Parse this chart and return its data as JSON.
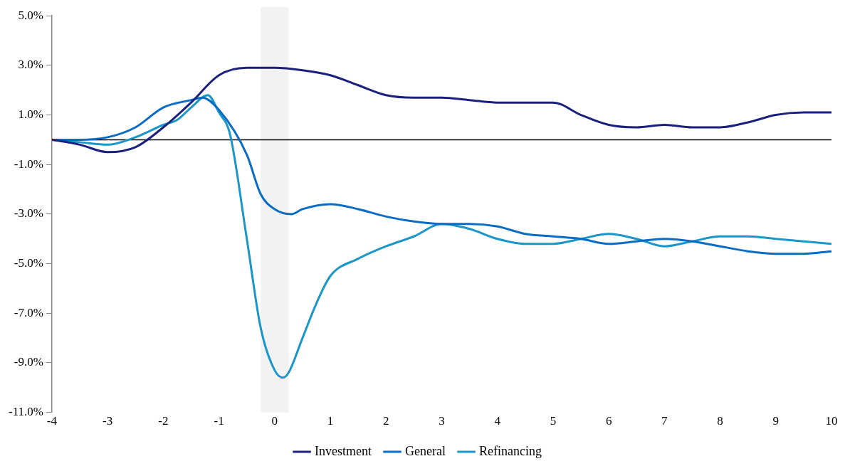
{
  "chart_data": {
    "type": "line",
    "legend": "bottom",
    "grid": false,
    "marker": "none",
    "line_style": "solid",
    "xlim": [
      -4,
      10
    ],
    "xticks": [
      -4,
      -3,
      -2,
      -1,
      0,
      1,
      2,
      3,
      4,
      5,
      6,
      7,
      8,
      9,
      10
    ],
    "ylim": [
      -11,
      5
    ],
    "yticks": [
      {
        "value": -11,
        "label": "-11.0%"
      },
      {
        "value": -9,
        "label": "-9.0%"
      },
      {
        "value": -7,
        "label": "-7.0%"
      },
      {
        "value": -5,
        "label": "-5.0%"
      },
      {
        "value": -3,
        "label": "-3.0%"
      },
      {
        "value": -1,
        "label": "-1.0%"
      },
      {
        "value": 1,
        "label": "1.0%"
      },
      {
        "value": 3,
        "label": "3.0%"
      },
      {
        "value": 5,
        "label": "5.0%"
      }
    ],
    "ref_lines": [
      {
        "axis": "y",
        "value": 0,
        "color": "#000000"
      }
    ],
    "bands": [
      {
        "axis": "x",
        "from": -0.25,
        "to": 0.25,
        "color": "#f2f2f2"
      }
    ],
    "series": [
      {
        "name": "Investment",
        "color": "#1b1f7e",
        "x": [
          -4,
          -3.5,
          -3,
          -2.5,
          -2,
          -1.5,
          -1,
          -0.5,
          0,
          0.5,
          1,
          1.5,
          2,
          2.5,
          3,
          3.5,
          4,
          4.5,
          5,
          5.5,
          6,
          6.5,
          7,
          7.5,
          8,
          8.5,
          9,
          9.5,
          10
        ],
        "values": [
          0,
          -0.2,
          -0.5,
          -0.3,
          0.5,
          1.5,
          2.6,
          2.9,
          2.9,
          2.8,
          2.6,
          2.2,
          1.8,
          1.7,
          1.7,
          1.6,
          1.5,
          1.5,
          1.5,
          1,
          0.6,
          0.5,
          0.6,
          0.5,
          0.5,
          0.7,
          1,
          1.1,
          1.1
        ]
      },
      {
        "name": "General",
        "color": "#0a6cc4",
        "x": [
          -4,
          -3.5,
          -3,
          -2.5,
          -2,
          -1.5,
          -1.3,
          -1,
          -0.5,
          -0.25,
          0,
          0.3,
          0.5,
          1,
          1.5,
          2,
          2.5,
          3,
          3.5,
          4,
          4.5,
          5,
          5.5,
          6,
          6.5,
          7,
          7.5,
          8,
          8.5,
          9,
          9.5,
          10
        ],
        "values": [
          0,
          0,
          0.1,
          0.5,
          1.3,
          1.6,
          1.7,
          1.2,
          -0.6,
          -2.2,
          -2.8,
          -3,
          -2.8,
          -2.6,
          -2.8,
          -3.1,
          -3.3,
          -3.4,
          -3.4,
          -3.5,
          -3.8,
          -3.9,
          -4,
          -4.2,
          -4.1,
          -4,
          -4.1,
          -4.3,
          -4.5,
          -4.6,
          -4.6,
          -4.5
        ]
      },
      {
        "name": "Refinancing",
        "color": "#1a96c9",
        "x": [
          -4,
          -3.5,
          -3,
          -2.5,
          -2,
          -1.75,
          -1.5,
          -1.2,
          -1,
          -0.8,
          -0.5,
          -0.25,
          0,
          0.15,
          0.25,
          0.5,
          0.75,
          1,
          1.5,
          2,
          2.5,
          3,
          3.5,
          4,
          4.5,
          5,
          5.5,
          6,
          6.5,
          7,
          7.5,
          8,
          8.5,
          9,
          9.5,
          10
        ],
        "values": [
          0,
          -0.1,
          -0.2,
          0.1,
          0.6,
          0.8,
          1.3,
          1.8,
          1.1,
          0.2,
          -4,
          -7.6,
          -9.3,
          -9.6,
          -9.4,
          -8,
          -6.6,
          -5.5,
          -4.8,
          -4.3,
          -3.9,
          -3.4,
          -3.6,
          -4,
          -4.2,
          -4.2,
          -4,
          -3.8,
          -4,
          -4.3,
          -4.1,
          -3.9,
          -3.9,
          -4,
          -4.1,
          -4.2
        ]
      }
    ]
  }
}
